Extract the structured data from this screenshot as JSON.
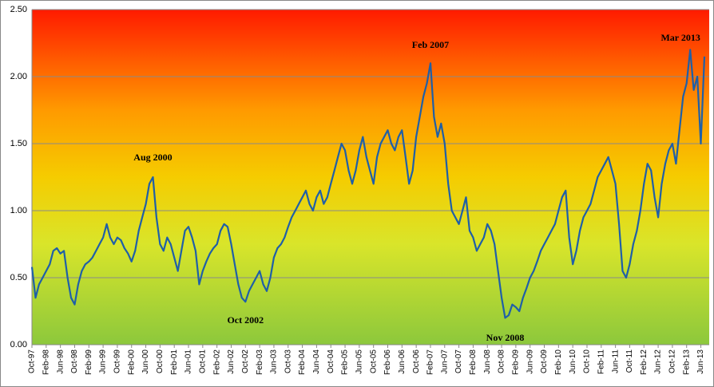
{
  "chart_data": {
    "type": "line",
    "categories": [
      "Oct-97",
      null,
      null,
      null,
      "Feb-98",
      null,
      null,
      null,
      "Jun-98",
      null,
      null,
      null,
      "Oct-98",
      null,
      null,
      null,
      "Feb-99",
      null,
      null,
      null,
      "Jun-99",
      null,
      null,
      null,
      "Oct-99",
      null,
      null,
      null,
      "Feb-00",
      null,
      null,
      null,
      "Jun-00",
      null,
      null,
      null,
      "Oct-00",
      null,
      null,
      null,
      "Feb-01",
      null,
      null,
      null,
      "Jun-01",
      null,
      null,
      null,
      "Oct-01",
      null,
      null,
      null,
      "Feb-02",
      null,
      null,
      null,
      "Jun-02",
      null,
      null,
      null,
      "Oct-02",
      null,
      null,
      null,
      "Feb-03",
      null,
      null,
      null,
      "Jun-03",
      null,
      null,
      null,
      "Oct-03",
      null,
      null,
      null,
      "Feb-04",
      null,
      null,
      null,
      "Jun-04",
      null,
      null,
      null,
      "Oct-04",
      null,
      null,
      null,
      "Feb-05",
      null,
      null,
      null,
      "Jun-05",
      null,
      null,
      null,
      "Oct-05",
      null,
      null,
      null,
      "Feb-06",
      null,
      null,
      null,
      "Jun-06",
      null,
      null,
      null,
      "Oct-06",
      null,
      null,
      null,
      "Feb-07",
      null,
      null,
      null,
      "Jun-07",
      null,
      null,
      null,
      "Oct-07",
      null,
      null,
      null,
      "Feb-08",
      null,
      null,
      null,
      "Jun-08",
      null,
      null,
      null,
      "Oct-08",
      null,
      null,
      null,
      "Feb-09",
      null,
      null,
      null,
      "Jun-09",
      null,
      null,
      null,
      "Oct-09",
      null,
      null,
      null,
      "Feb-10",
      null,
      null,
      null,
      "Jun-10",
      null,
      null,
      null,
      "Oct-10",
      null,
      null,
      null,
      "Feb-11",
      null,
      null,
      null,
      "Jun-11",
      null,
      null,
      null,
      "Oct-11",
      null,
      null,
      null,
      "Feb-12",
      null,
      null,
      null,
      "Jun-12",
      null,
      null,
      null,
      "Oct-12",
      null,
      null,
      null,
      "Feb-13",
      null,
      null,
      null,
      "Jun-13",
      null
    ],
    "series": [
      {
        "color": "#1f5fa8",
        "values": [
          0.58,
          0.35,
          0.45,
          0.5,
          0.55,
          0.6,
          0.7,
          0.72,
          0.68,
          0.7,
          0.5,
          0.35,
          0.3,
          0.45,
          0.55,
          0.6,
          0.62,
          0.65,
          0.7,
          0.75,
          0.8,
          0.9,
          0.8,
          0.75,
          0.8,
          0.78,
          0.72,
          0.68,
          0.62,
          0.7,
          0.85,
          0.95,
          1.05,
          1.2,
          1.25,
          0.95,
          0.75,
          0.7,
          0.8,
          0.75,
          0.65,
          0.55,
          0.7,
          0.85,
          0.88,
          0.8,
          0.7,
          0.45,
          0.55,
          0.62,
          0.68,
          0.72,
          0.75,
          0.85,
          0.9,
          0.88,
          0.75,
          0.6,
          0.45,
          0.35,
          0.32,
          0.4,
          0.45,
          0.5,
          0.55,
          0.45,
          0.4,
          0.5,
          0.65,
          0.72,
          0.75,
          0.8,
          0.88,
          0.95,
          1.0,
          1.05,
          1.1,
          1.15,
          1.05,
          1.0,
          1.1,
          1.15,
          1.05,
          1.1,
          1.2,
          1.3,
          1.4,
          1.5,
          1.45,
          1.3,
          1.2,
          1.3,
          1.45,
          1.55,
          1.4,
          1.3,
          1.2,
          1.4,
          1.5,
          1.55,
          1.6,
          1.5,
          1.45,
          1.55,
          1.6,
          1.4,
          1.2,
          1.3,
          1.55,
          1.7,
          1.85,
          1.95,
          2.1,
          1.7,
          1.55,
          1.65,
          1.5,
          1.2,
          1.0,
          0.95,
          0.9,
          1.0,
          1.1,
          0.85,
          0.8,
          0.7,
          0.75,
          0.8,
          0.9,
          0.85,
          0.75,
          0.55,
          0.35,
          0.2,
          0.22,
          0.3,
          0.28,
          0.25,
          0.35,
          0.42,
          0.5,
          0.55,
          0.62,
          0.7,
          0.75,
          0.8,
          0.85,
          0.9,
          1.0,
          1.1,
          1.15,
          0.8,
          0.6,
          0.7,
          0.85,
          0.95,
          1.0,
          1.05,
          1.15,
          1.25,
          1.3,
          1.35,
          1.4,
          1.3,
          1.2,
          0.9,
          0.55,
          0.5,
          0.6,
          0.75,
          0.85,
          1.0,
          1.2,
          1.35,
          1.3,
          1.1,
          0.95,
          1.2,
          1.35,
          1.45,
          1.5,
          1.35,
          1.6,
          1.85,
          1.95,
          2.2,
          1.9,
          2.0,
          1.5,
          2.15
        ]
      }
    ],
    "annotations": [
      "Aug 2000",
      "Oct 2002",
      "Feb 2007",
      "Nov 2008",
      "Mar 2013"
    ],
    "ylim": [
      0,
      2.5
    ],
    "yticks": [
      {
        "value": 0,
        "label": "0.00"
      },
      {
        "value": 0.5,
        "label": "0.50"
      },
      {
        "value": 1,
        "label": "1.00"
      },
      {
        "value": 1.5,
        "label": "1.50"
      },
      {
        "value": 2,
        "label": "2.00"
      },
      {
        "value": 2.5,
        "label": "2.50"
      }
    ],
    "grid": true
  }
}
